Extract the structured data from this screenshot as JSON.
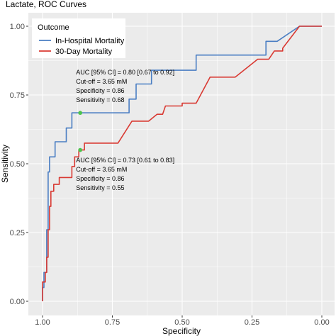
{
  "colors": {
    "background": "#ffffff",
    "panel": "#ebebeb",
    "grid_major": "#ffffff",
    "axis_text": "#4d4d4d",
    "in_hospital": "#4a7ec3",
    "thirty_day": "#d93a33",
    "cutoff_point": "#4cc34c"
  },
  "chart_data": {
    "type": "line",
    "title": "Lactate, ROC Curves",
    "xlabel": "Specificity",
    "ylabel": "Sensitivity",
    "x_reversed": true,
    "xlim": [
      1.0,
      0.0
    ],
    "ylim": [
      0.0,
      1.0
    ],
    "x_ticks": [
      1.0,
      0.75,
      0.5,
      0.25,
      0.0
    ],
    "x_tick_labels": [
      "1.00",
      "0.75",
      "0.50",
      "0.25",
      "0.00"
    ],
    "y_ticks": [
      0.0,
      0.25,
      0.5,
      0.75,
      1.0
    ],
    "y_tick_labels": [
      "0.00",
      "0.25",
      "0.50",
      "0.75",
      "1.00"
    ],
    "grid": true,
    "legend": {
      "title": "Outcome",
      "position": "top-left",
      "entries": [
        "In-Hospital Mortality",
        "30-Day Mortality"
      ]
    },
    "series": [
      {
        "name": "In-Hospital Mortality",
        "color": "#4a7ec3",
        "points": [
          [
            1.0,
            0.0
          ],
          [
            1.0,
            0.05
          ],
          [
            0.995,
            0.05
          ],
          [
            0.995,
            0.105
          ],
          [
            0.985,
            0.105
          ],
          [
            0.985,
            0.26
          ],
          [
            0.98,
            0.26
          ],
          [
            0.98,
            0.42
          ],
          [
            0.98,
            0.47
          ],
          [
            0.975,
            0.47
          ],
          [
            0.975,
            0.525
          ],
          [
            0.955,
            0.525
          ],
          [
            0.955,
            0.58
          ],
          [
            0.915,
            0.58
          ],
          [
            0.915,
            0.63
          ],
          [
            0.895,
            0.63
          ],
          [
            0.895,
            0.685
          ],
          [
            0.865,
            0.685
          ],
          [
            0.69,
            0.685
          ],
          [
            0.69,
            0.735
          ],
          [
            0.665,
            0.735
          ],
          [
            0.665,
            0.79
          ],
          [
            0.61,
            0.79
          ],
          [
            0.61,
            0.84
          ],
          [
            0.45,
            0.84
          ],
          [
            0.45,
            0.895
          ],
          [
            0.2,
            0.895
          ],
          [
            0.2,
            0.945
          ],
          [
            0.16,
            0.945
          ],
          [
            0.08,
            1.0
          ],
          [
            0.0,
            1.0
          ]
        ]
      },
      {
        "name": "30-Day Mortality",
        "color": "#d93a33",
        "points": [
          [
            1.0,
            0.0
          ],
          [
            1.0,
            0.07
          ],
          [
            0.99,
            0.07
          ],
          [
            0.99,
            0.105
          ],
          [
            0.985,
            0.105
          ],
          [
            0.985,
            0.16
          ],
          [
            0.98,
            0.16
          ],
          [
            0.98,
            0.26
          ],
          [
            0.975,
            0.26
          ],
          [
            0.975,
            0.345
          ],
          [
            0.97,
            0.345
          ],
          [
            0.97,
            0.4
          ],
          [
            0.96,
            0.4
          ],
          [
            0.96,
            0.425
          ],
          [
            0.94,
            0.425
          ],
          [
            0.94,
            0.45
          ],
          [
            0.895,
            0.45
          ],
          [
            0.895,
            0.49
          ],
          [
            0.885,
            0.49
          ],
          [
            0.885,
            0.525
          ],
          [
            0.87,
            0.525
          ],
          [
            0.87,
            0.55
          ],
          [
            0.865,
            0.55
          ],
          [
            0.85,
            0.55
          ],
          [
            0.85,
            0.575
          ],
          [
            0.73,
            0.575
          ],
          [
            0.68,
            0.655
          ],
          [
            0.62,
            0.655
          ],
          [
            0.59,
            0.68
          ],
          [
            0.57,
            0.68
          ],
          [
            0.56,
            0.71
          ],
          [
            0.5,
            0.71
          ],
          [
            0.5,
            0.72
          ],
          [
            0.45,
            0.72
          ],
          [
            0.4,
            0.815
          ],
          [
            0.31,
            0.815
          ],
          [
            0.23,
            0.88
          ],
          [
            0.19,
            0.88
          ],
          [
            0.17,
            0.91
          ],
          [
            0.14,
            0.91
          ],
          [
            0.14,
            0.92
          ],
          [
            0.08,
            1.0
          ],
          [
            0.0,
            1.0
          ]
        ]
      }
    ],
    "cutoff_points": [
      {
        "series": "In-Hospital Mortality",
        "x": 0.865,
        "y": 0.685
      },
      {
        "series": "30-Day Mortality",
        "x": 0.865,
        "y": 0.55
      }
    ],
    "annotations": [
      {
        "series": "In-Hospital Mortality",
        "lines": [
          "AUC [95% CI] = 0.80 [0.67 to 0.92]",
          "Cut-off = 3.65 mM",
          "Specificity = 0.86",
          "Sensitivity = 0.68"
        ],
        "anchor": [
          0.88,
          0.825
        ]
      },
      {
        "series": "30-Day Mortality",
        "lines": [
          "AUC [95% CI] = 0.73 [0.61 to 0.83]",
          "Cut-off = 3.65 mM",
          "Specificity = 0.86",
          "Sensitivity = 0.55"
        ],
        "anchor": [
          0.88,
          0.505
        ]
      }
    ]
  }
}
